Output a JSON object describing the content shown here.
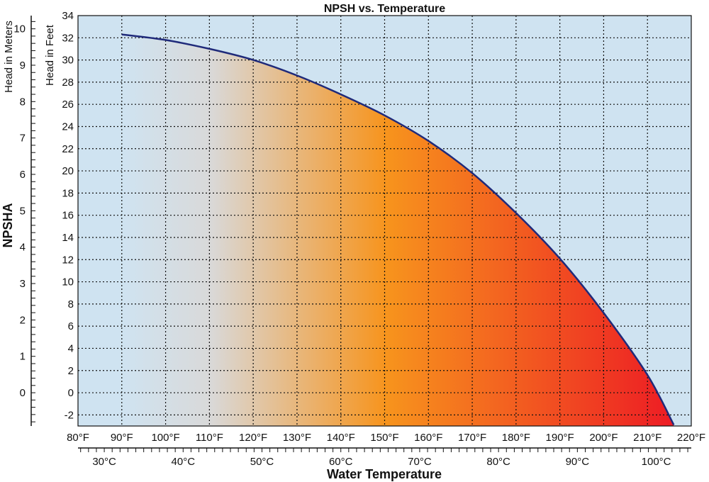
{
  "chart_data": {
    "type": "area",
    "title": "NPSH vs. Temperature",
    "xlabel": "Water Temperature",
    "ylabel": "NPSHA",
    "y_feet_label": "Head in Feet",
    "y_meters_label": "Head in Meters",
    "xlim_f": [
      80,
      220
    ],
    "ylim_ft": [
      -3,
      34
    ],
    "grid": true,
    "x_ticks_f": [
      80,
      90,
      100,
      110,
      120,
      130,
      140,
      150,
      160,
      170,
      180,
      190,
      200,
      210,
      220
    ],
    "x_tick_labels_f": [
      "80°F",
      "90°F",
      "100°F",
      "110°F",
      "120°F",
      "130°F",
      "140°F",
      "150°F",
      "160°F",
      "170°F",
      "180°F",
      "190°F",
      "200°F",
      "210°F",
      "220°F"
    ],
    "y_ticks_ft": [
      -2,
      0,
      2,
      4,
      6,
      8,
      10,
      12,
      14,
      16,
      18,
      20,
      22,
      24,
      26,
      28,
      30,
      32,
      34
    ],
    "y_tick_labels_ft": [
      "-2",
      "0",
      "2",
      "4",
      "6",
      "8",
      "10",
      "12",
      "14",
      "16",
      "18",
      "20",
      "22",
      "24",
      "26",
      "28",
      "30",
      "32",
      "34"
    ],
    "x_ticks_c": [
      30,
      40,
      50,
      60,
      70,
      80,
      90,
      100
    ],
    "x_tick_labels_c": [
      "30°C",
      "40°C",
      "50°C",
      "60°C",
      "70°C",
      "80°C",
      "90°C",
      "100°C"
    ],
    "y_ticks_m": [
      0,
      1,
      2,
      3,
      4,
      5,
      6,
      7,
      8,
      9,
      10
    ],
    "y_tick_labels_m": [
      "0",
      "1",
      "2",
      "3",
      "4",
      "5",
      "6",
      "7",
      "8",
      "9",
      "10"
    ],
    "series": [
      {
        "x": [
          90,
          100,
          110,
          120,
          130,
          140,
          150,
          160,
          170,
          180,
          190,
          200,
          210,
          216
        ],
        "y": [
          32.3,
          31.8,
          31.0,
          30.0,
          28.6,
          26.9,
          25.0,
          22.7,
          19.8,
          16.2,
          12.1,
          7.2,
          1.6,
          -2.9
        ],
        "color": "#1f2a7a"
      }
    ],
    "colors": {
      "plot_background": "#cfe3f1",
      "fill_gradient": [
        "#d9d9d9",
        "#f7941d",
        "#ed1c24"
      ]
    }
  }
}
